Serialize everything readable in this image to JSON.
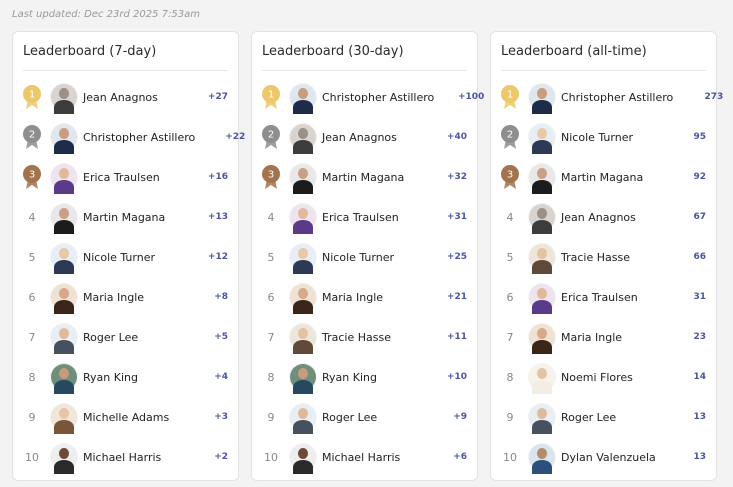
{
  "last_updated": "Last updated: Dec 23rd 2025 7:53am",
  "colors": {
    "gold": "#ecc86a",
    "silver": "#8e8e8e",
    "bronze": "#a2734c",
    "score": "#4a55a2"
  },
  "boards": [
    {
      "title": "Leaderboard (7-day)",
      "rows": [
        {
          "rank": "1",
          "name": "Jean Anagnos",
          "score": "+27"
        },
        {
          "rank": "2",
          "name": "Christopher Astillero",
          "score": "+22"
        },
        {
          "rank": "3",
          "name": "Erica Traulsen",
          "score": "+16"
        },
        {
          "rank": "4",
          "name": "Martin Magana",
          "score": "+13"
        },
        {
          "rank": "5",
          "name": "Nicole Turner",
          "score": "+12"
        },
        {
          "rank": "6",
          "name": "Maria Ingle",
          "score": "+8"
        },
        {
          "rank": "7",
          "name": "Roger Lee",
          "score": "+5"
        },
        {
          "rank": "8",
          "name": "Ryan King",
          "score": "+4"
        },
        {
          "rank": "9",
          "name": "Michelle Adams",
          "score": "+3"
        },
        {
          "rank": "10",
          "name": "Michael Harris",
          "score": "+2"
        }
      ]
    },
    {
      "title": "Leaderboard (30-day)",
      "rows": [
        {
          "rank": "1",
          "name": "Christopher Astillero",
          "score": "+100"
        },
        {
          "rank": "2",
          "name": "Jean Anagnos",
          "score": "+40"
        },
        {
          "rank": "3",
          "name": "Martin Magana",
          "score": "+32"
        },
        {
          "rank": "4",
          "name": "Erica Traulsen",
          "score": "+31"
        },
        {
          "rank": "5",
          "name": "Nicole Turner",
          "score": "+25"
        },
        {
          "rank": "6",
          "name": "Maria Ingle",
          "score": "+21"
        },
        {
          "rank": "7",
          "name": "Tracie Hasse",
          "score": "+11"
        },
        {
          "rank": "8",
          "name": "Ryan King",
          "score": "+10"
        },
        {
          "rank": "9",
          "name": "Roger Lee",
          "score": "+9"
        },
        {
          "rank": "10",
          "name": "Michael Harris",
          "score": "+6"
        }
      ]
    },
    {
      "title": "Leaderboard (all-time)",
      "rows": [
        {
          "rank": "1",
          "name": "Christopher Astillero",
          "score": "273"
        },
        {
          "rank": "2",
          "name": "Nicole Turner",
          "score": "95"
        },
        {
          "rank": "3",
          "name": "Martin Magana",
          "score": "92"
        },
        {
          "rank": "4",
          "name": "Jean Anagnos",
          "score": "67"
        },
        {
          "rank": "5",
          "name": "Tracie Hasse",
          "score": "66"
        },
        {
          "rank": "6",
          "name": "Erica Traulsen",
          "score": "31"
        },
        {
          "rank": "7",
          "name": "Maria Ingle",
          "score": "23"
        },
        {
          "rank": "8",
          "name": "Noemi Flores",
          "score": "14"
        },
        {
          "rank": "9",
          "name": "Roger Lee",
          "score": "13"
        },
        {
          "rank": "10",
          "name": "Dylan Valenzuela",
          "score": "13"
        }
      ]
    }
  ]
}
